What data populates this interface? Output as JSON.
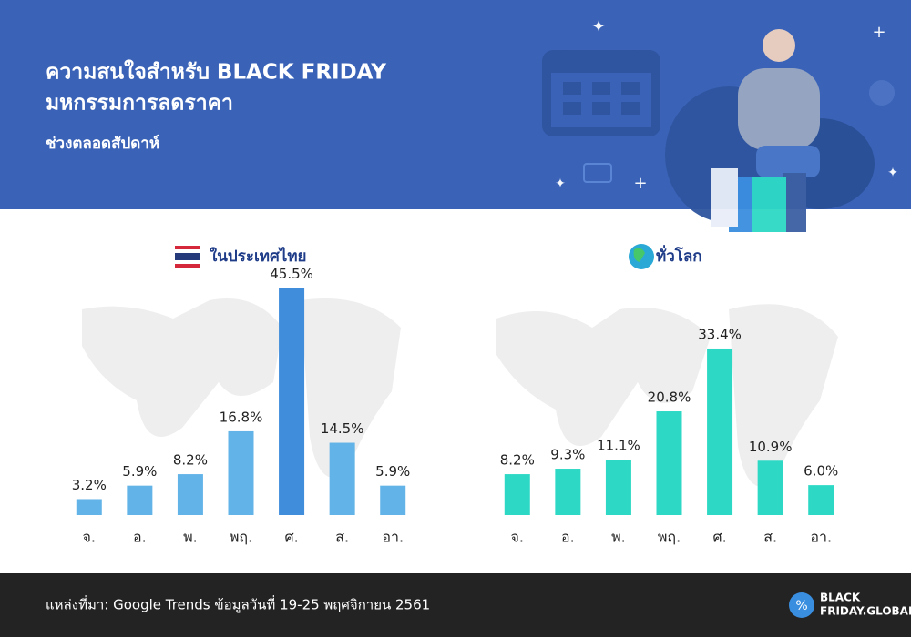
{
  "header": {
    "title_line1": "ความสนใจสำหรับ BLACK FRIDAY",
    "title_line2": "มหกรรมการลดราคา",
    "subtitle": "ช่วงตลอดสัปดาห์"
  },
  "chart_data": [
    {
      "type": "bar",
      "title": "ในประเทศไทย",
      "categories": [
        "จ.",
        "อ.",
        "พ.",
        "พฤ.",
        "ศ.",
        "ส.",
        "อา."
      ],
      "values": [
        3.2,
        5.9,
        8.2,
        16.8,
        45.5,
        14.5,
        5.9
      ],
      "value_labels": [
        "3.2%",
        "5.9%",
        "8.2%",
        "16.8%",
        "45.5%",
        "14.5%",
        "5.9%"
      ],
      "colors": [
        "#62b4e8",
        "#62b4e8",
        "#62b4e8",
        "#62b4e8",
        "#3f8ddb",
        "#62b4e8",
        "#62b4e8"
      ],
      "ylim": [
        0,
        50
      ]
    },
    {
      "type": "bar",
      "title": "ทั่วโลก",
      "categories": [
        "จ.",
        "อ.",
        "พ.",
        "พฤ.",
        "ศ.",
        "ส.",
        "อา."
      ],
      "values": [
        8.2,
        9.3,
        11.1,
        20.8,
        33.4,
        10.9,
        6.0
      ],
      "value_labels": [
        "8.2%",
        "9.3%",
        "11.1%",
        "20.8%",
        "33.4%",
        "10.9%",
        "6.0%"
      ],
      "colors": [
        "#2dd9c5",
        "#2dd9c5",
        "#2dd9c5",
        "#2dd9c5",
        "#2dd9c5",
        "#2dd9c5",
        "#2dd9c5"
      ],
      "ylim": [
        0,
        50
      ]
    }
  ],
  "footer": {
    "source": "แหล่งที่มา: Google Trends ข้อมูลวันที่ 19-25 พฤศจิกายน 2561",
    "logo_line1": "BLACK",
    "logo_line2": "FRIDAY.GLOBAL"
  }
}
